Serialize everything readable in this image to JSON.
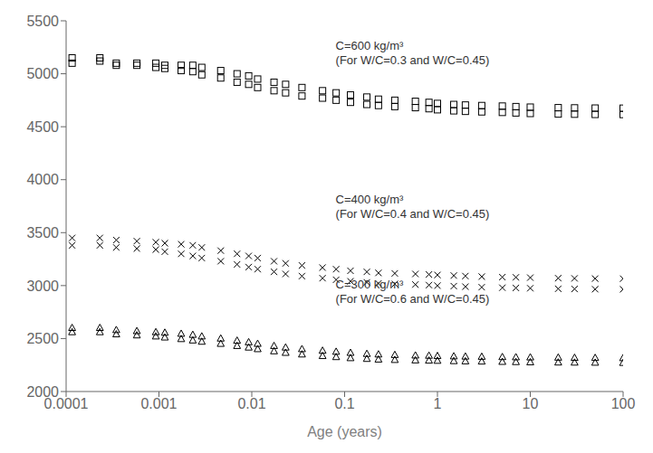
{
  "chart_data": {
    "type": "scatter",
    "title": "",
    "xlabel": "Age (years)",
    "log": "x",
    "grid": false,
    "xlim": [
      0.0001,
      100
    ],
    "ylim": [
      2000,
      5500
    ],
    "xticks": [
      0.0001,
      0.001,
      0.01,
      0.1,
      1,
      10,
      100
    ],
    "yticks": [
      2000,
      2500,
      3000,
      3500,
      4000,
      4500,
      5000,
      5500
    ],
    "annotations": [
      {
        "text": "C=600 kg/m³\n(For W/C=0.3 and W/C=0.45)",
        "x": 0.08,
        "y": 5200
      },
      {
        "text": "C=400 kg/m³\n(For W/C=0.4 and W/C=0.45)",
        "x": 0.08,
        "y": 3750
      },
      {
        "text": "C=300 kg/m³\n(For W/C=0.6 and W/C=0.45)",
        "x": 0.08,
        "y": 2950
      }
    ],
    "x": [
      0.000116,
      0.000231,
      0.000347,
      0.000578,
      0.000926,
      0.001157,
      0.001736,
      0.002315,
      0.002894,
      0.00463,
      0.006944,
      0.009259,
      0.01157,
      0.01736,
      0.02315,
      0.03472,
      0.05787,
      0.08102,
      0.1157,
      0.1736,
      0.2315,
      0.3472,
      0.5787,
      0.8102,
      1.0,
      1.5,
      2.0,
      3.0,
      5.0,
      7.0,
      10.0,
      20.0,
      30.0,
      50.0,
      100.0
    ],
    "series": [
      {
        "marker": "square",
        "color": "#000000",
        "values": [
          5150,
          5150,
          5100,
          5100,
          5100,
          5080,
          5080,
          5080,
          5060,
          5030,
          5000,
          4980,
          4950,
          4920,
          4900,
          4870,
          4840,
          4820,
          4800,
          4780,
          4760,
          4750,
          4740,
          4730,
          4720,
          4710,
          4705,
          4700,
          4695,
          4690,
          4685,
          4680,
          4678,
          4676,
          4675
        ]
      },
      {
        "marker": "square",
        "color": "#000000",
        "values": [
          5100,
          5120,
          5080,
          5080,
          5060,
          5050,
          5030,
          5020,
          4990,
          4960,
          4920,
          4900,
          4870,
          4840,
          4820,
          4790,
          4770,
          4750,
          4730,
          4710,
          4700,
          4690,
          4680,
          4670,
          4660,
          4650,
          4645,
          4640,
          4635,
          4630,
          4625,
          4620,
          4618,
          4616,
          4615
        ]
      },
      {
        "marker": "x",
        "color": "#000000",
        "values": [
          3450,
          3450,
          3430,
          3420,
          3410,
          3400,
          3390,
          3380,
          3360,
          3330,
          3300,
          3280,
          3260,
          3230,
          3210,
          3190,
          3170,
          3155,
          3140,
          3130,
          3120,
          3115,
          3110,
          3105,
          3100,
          3095,
          3090,
          3085,
          3080,
          3078,
          3075,
          3070,
          3068,
          3066,
          3065
        ]
      },
      {
        "marker": "x",
        "color": "#000000",
        "values": [
          3380,
          3380,
          3360,
          3350,
          3340,
          3320,
          3300,
          3280,
          3260,
          3230,
          3200,
          3175,
          3155,
          3130,
          3110,
          3090,
          3070,
          3055,
          3040,
          3030,
          3020,
          3015,
          3010,
          3005,
          3000,
          2995,
          2990,
          2985,
          2980,
          2978,
          2975,
          2970,
          2968,
          2966,
          2965
        ]
      },
      {
        "marker": "triangle",
        "color": "#000000",
        "values": [
          2600,
          2600,
          2580,
          2570,
          2560,
          2555,
          2545,
          2535,
          2520,
          2500,
          2480,
          2465,
          2450,
          2430,
          2415,
          2400,
          2385,
          2375,
          2365,
          2355,
          2350,
          2345,
          2340,
          2338,
          2335,
          2332,
          2330,
          2328,
          2325,
          2323,
          2322,
          2320,
          2318,
          2317,
          2315
        ]
      },
      {
        "marker": "triangle",
        "color": "#000000",
        "values": [
          2560,
          2560,
          2540,
          2530,
          2520,
          2510,
          2495,
          2482,
          2470,
          2450,
          2430,
          2415,
          2400,
          2380,
          2365,
          2350,
          2335,
          2325,
          2315,
          2308,
          2302,
          2298,
          2294,
          2292,
          2290,
          2287,
          2285,
          2283,
          2280,
          2278,
          2276,
          2274,
          2273,
          2272,
          2270
        ]
      }
    ]
  }
}
